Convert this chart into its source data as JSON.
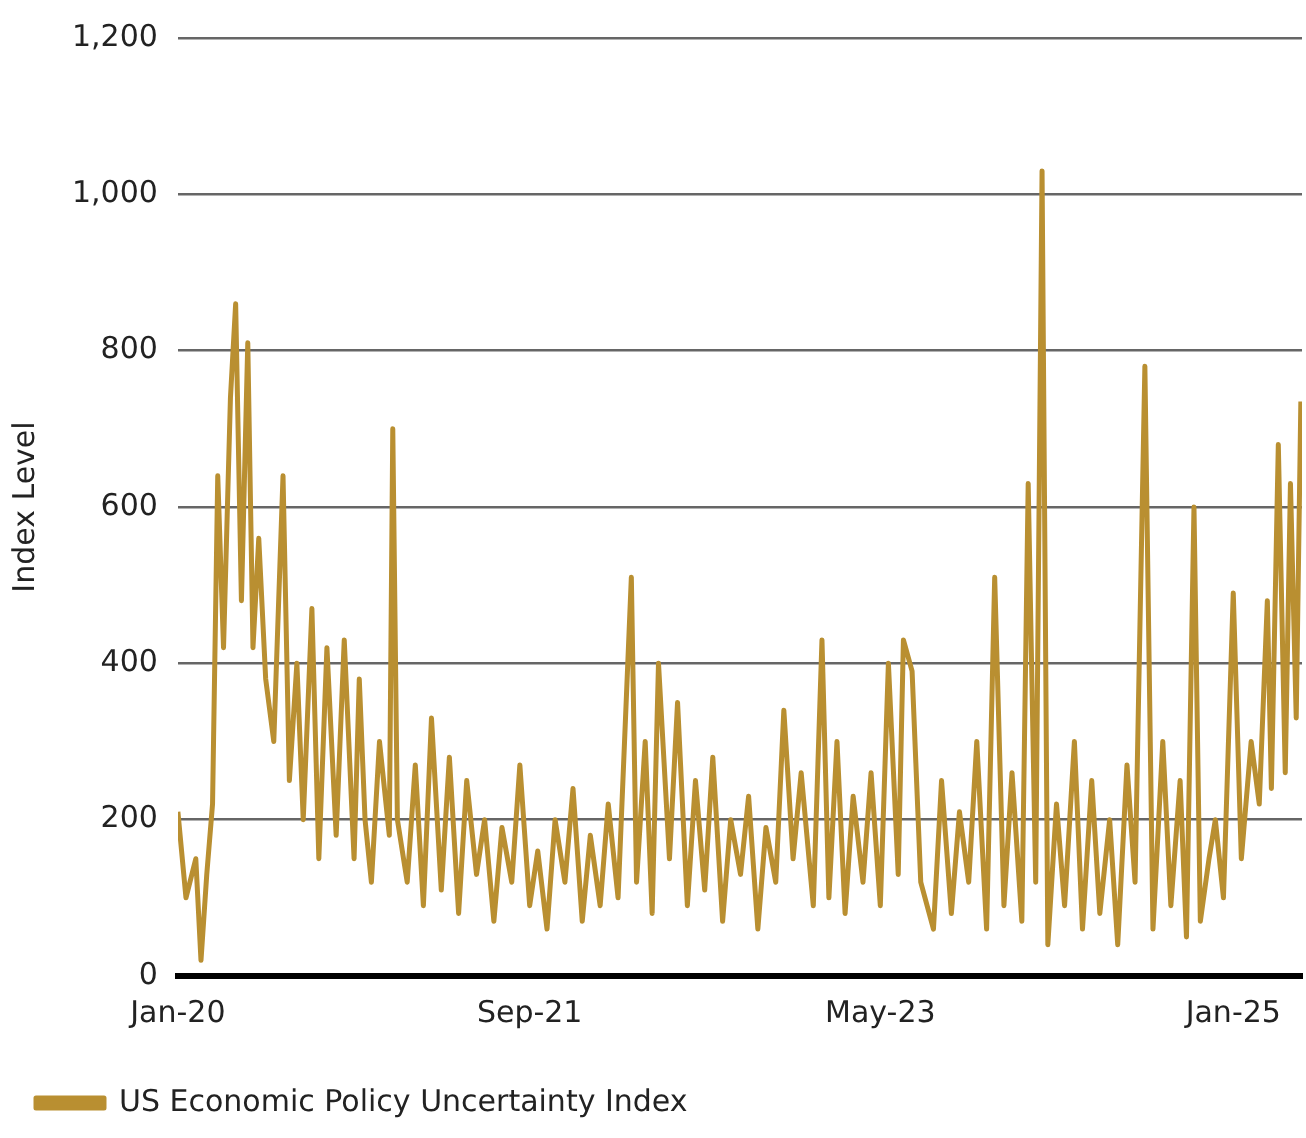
{
  "chart_data": {
    "type": "line",
    "ylabel": "Index Level",
    "legend": "bottom",
    "grid": "y",
    "marker": "none",
    "line_style": "solid",
    "x": [
      "2020-01-01",
      "2020-01-15",
      "2020-02-01",
      "2020-02-10",
      "2020-02-20",
      "2020-03-01",
      "2020-03-10",
      "2020-03-20",
      "2020-04-01",
      "2020-04-10",
      "2020-04-20",
      "2020-05-01",
      "2020-05-10",
      "2020-05-20",
      "2020-06-01",
      "2020-06-15",
      "2020-07-01",
      "2020-07-12",
      "2020-07-25",
      "2020-08-05",
      "2020-08-20",
      "2020-09-01",
      "2020-09-15",
      "2020-10-01",
      "2020-10-15",
      "2020-11-01",
      "2020-11-10",
      "2020-11-20",
      "2020-12-01",
      "2020-12-15",
      "2021-01-01",
      "2021-01-07",
      "2021-01-15",
      "2021-02-01",
      "2021-02-15",
      "2021-03-01",
      "2021-03-15",
      "2021-04-01",
      "2021-04-15",
      "2021-05-01",
      "2021-05-15",
      "2021-06-01",
      "2021-06-15",
      "2021-07-01",
      "2021-07-15",
      "2021-08-01",
      "2021-08-15",
      "2021-09-01",
      "2021-09-15",
      "2021-10-01",
      "2021-10-15",
      "2021-11-01",
      "2021-11-15",
      "2021-12-01",
      "2021-12-15",
      "2022-01-01",
      "2022-01-15",
      "2022-02-01",
      "2022-02-24",
      "2022-03-05",
      "2022-03-20",
      "2022-04-01",
      "2022-04-12",
      "2022-05-01",
      "2022-05-15",
      "2022-06-01",
      "2022-06-15",
      "2022-07-01",
      "2022-07-15",
      "2022-08-01",
      "2022-08-15",
      "2022-09-01",
      "2022-09-15",
      "2022-10-01",
      "2022-10-15",
      "2022-11-01",
      "2022-11-15",
      "2022-12-01",
      "2022-12-15",
      "2023-01-05",
      "2023-01-20",
      "2023-02-01",
      "2023-02-15",
      "2023-03-01",
      "2023-03-15",
      "2023-04-01",
      "2023-04-15",
      "2023-05-01",
      "2023-05-15",
      "2023-06-01",
      "2023-06-10",
      "2023-06-25",
      "2023-07-10",
      "2023-08-01",
      "2023-08-15",
      "2023-09-01",
      "2023-09-15",
      "2023-10-01",
      "2023-10-15",
      "2023-11-01",
      "2023-11-15",
      "2023-12-01",
      "2023-12-15",
      "2024-01-01",
      "2024-01-12",
      "2024-01-25",
      "2024-02-05",
      "2024-02-15",
      "2024-03-01",
      "2024-03-15",
      "2024-04-01",
      "2024-04-15",
      "2024-05-01",
      "2024-05-15",
      "2024-06-01",
      "2024-06-15",
      "2024-07-01",
      "2024-07-15",
      "2024-08-01",
      "2024-08-15",
      "2024-09-01",
      "2024-09-15",
      "2024-10-01",
      "2024-10-12",
      "2024-10-25",
      "2024-11-05",
      "2024-11-20",
      "2024-12-01",
      "2024-12-15",
      "2025-01-01",
      "2025-01-15",
      "2025-02-01",
      "2025-02-15",
      "2025-03-01",
      "2025-03-08",
      "2025-03-20",
      "2025-04-01",
      "2025-04-10",
      "2025-04-20",
      "2025-04-28"
    ],
    "series": [
      {
        "name": "US Economic Policy Uncertainty Index",
        "color": "#b98f31",
        "values": [
          210,
          100,
          150,
          20,
          130,
          220,
          640,
          420,
          740,
          860,
          480,
          810,
          420,
          560,
          380,
          300,
          640,
          250,
          400,
          200,
          470,
          150,
          420,
          180,
          430,
          150,
          380,
          200,
          120,
          300,
          180,
          700,
          200,
          120,
          270,
          90,
          330,
          110,
          280,
          80,
          250,
          130,
          200,
          70,
          190,
          120,
          270,
          90,
          160,
          60,
          200,
          120,
          240,
          70,
          180,
          90,
          220,
          100,
          510,
          120,
          300,
          80,
          400,
          150,
          350,
          90,
          250,
          110,
          280,
          70,
          200,
          130,
          230,
          60,
          190,
          120,
          340,
          150,
          260,
          90,
          430,
          100,
          300,
          80,
          230,
          120,
          260,
          90,
          400,
          130,
          430,
          390,
          120,
          60,
          250,
          80,
          210,
          120,
          300,
          60,
          510,
          90,
          260,
          70,
          630,
          120,
          1030,
          40,
          220,
          90,
          300,
          60,
          250,
          80,
          200,
          40,
          270,
          120,
          780,
          60,
          300,
          90,
          250,
          50,
          600,
          70,
          150,
          200,
          100,
          490,
          150,
          300,
          220,
          480,
          240,
          680,
          260,
          630,
          330,
          735
        ]
      }
    ],
    "ylim": [
      0,
      1200
    ],
    "yticks": [
      0,
      {
        "value": 200,
        "label": "200"
      },
      {
        "value": 400,
        "label": "400"
      },
      {
        "value": 600,
        "label": "600"
      },
      {
        "value": 800,
        "label": "800"
      },
      {
        "value": 1000,
        "label": "1,000"
      },
      {
        "value": 1200,
        "label": "1,200"
      }
    ],
    "xlim": [
      "2020-01-01",
      "2025-04-30"
    ],
    "xticks": [
      {
        "value": "2020-01-01",
        "label": "Jan-20"
      },
      {
        "value": "2021-09-01",
        "label": "Sep-21"
      },
      {
        "value": "2023-05-01",
        "label": "May-23"
      },
      {
        "value": "2025-01-01",
        "label": "Jan-25"
      }
    ]
  }
}
